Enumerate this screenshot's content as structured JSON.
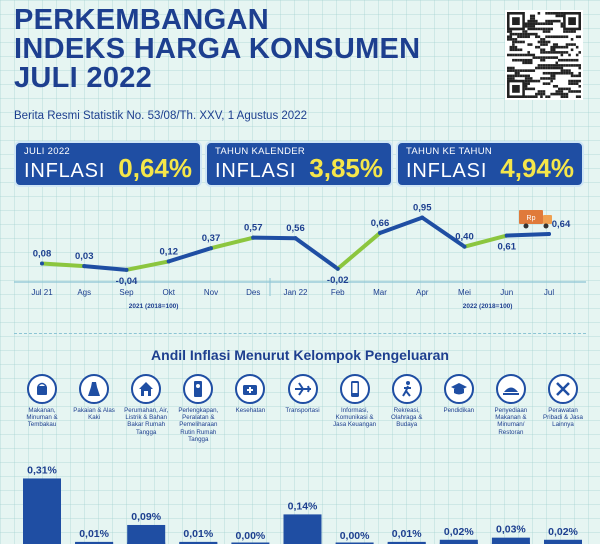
{
  "header": {
    "title_lines": [
      "PERKEMBANGAN",
      "INDEKS HARGA KONSUMEN",
      "JULI 2022"
    ],
    "subtitle": "Berita Resmi Statistik No. 53/08/Th. XXV, 1 Agustus 2022"
  },
  "cards": [
    {
      "small": "JULI 2022",
      "big": "INFLASI",
      "value": "0,64",
      "unit": "%"
    },
    {
      "small": "TAHUN KALENDER",
      "big": "INFLASI",
      "value": "3,85",
      "unit": "%"
    },
    {
      "small": "TAHUN KE TAHUN",
      "big": "INFLASI",
      "value": "4,94",
      "unit": "%"
    }
  ],
  "colors": {
    "navy": "#1f4ea3",
    "green": "#8cc63f",
    "yellow": "#f5e64a",
    "background": "#e6f5f2",
    "text": "#1d3f8f"
  },
  "chart_data": [
    {
      "type": "line",
      "title": "",
      "categories": [
        "Jul 21",
        "Ags",
        "Sep",
        "Okt",
        "Nov",
        "Des",
        "Jan 22",
        "Feb",
        "Mar",
        "Apr",
        "Mei",
        "Jun",
        "Jul"
      ],
      "values": [
        0.08,
        0.03,
        -0.04,
        0.12,
        0.37,
        0.57,
        0.56,
        -0.02,
        0.66,
        0.95,
        0.4,
        0.61,
        0.64
      ],
      "value_labels": [
        "0,08",
        "0,03",
        "-0,04",
        "0,12",
        "0,37",
        "0,57",
        "0,56",
        "-0,02",
        "0,66",
        "0,95",
        "0,40",
        "0,61",
        "0,64"
      ],
      "segment_colors": [
        "green",
        "navy",
        "green",
        "navy",
        "green",
        "navy",
        "navy",
        "green",
        "navy",
        "navy",
        "green",
        "navy"
      ],
      "ylim": [
        -0.1,
        1.0
      ],
      "group_labels": [
        "2021 (2018=100)",
        "2022 (2018=100)"
      ],
      "truck_badge": "Rp"
    },
    {
      "type": "bar",
      "title": "Andil Inflasi Menurut Kelompok Pengeluaran",
      "categories": [
        "Makanan, Minuman & Tembakau",
        "Pakaian & Alas Kaki",
        "Perumahan, Air, Listrik & Bahan Bakar Rumah Tangga",
        "Perlengkapan, Peralatan & Pemeliharaan Rutin Rumah Tangga",
        "Kesehatan",
        "Transportasi",
        "Informasi, Komunikasi & Jasa Keuangan",
        "Rekreasi, Olahraga & Budaya",
        "Pendidikan",
        "Penyediaan Makanan & Minuman/ Restoran",
        "Perawatan Pribadi & Jasa Lainnya"
      ],
      "values": [
        0.31,
        0.01,
        0.09,
        0.01,
        0.0,
        0.14,
        0.0,
        0.01,
        0.02,
        0.03,
        0.02
      ],
      "value_labels": [
        "0,31%",
        "0,01%",
        "0,09%",
        "0,01%",
        "0,00%",
        "0,14%",
        "0,00%",
        "0,01%",
        "0,02%",
        "0,03%",
        "0,02%"
      ],
      "icons": [
        "food-icon",
        "dress-icon",
        "house-icon",
        "appliance-icon",
        "medical-kit-icon",
        "airplane-icon",
        "phone-icon",
        "sports-icon",
        "graduation-cap-icon",
        "restaurant-icon",
        "scissors-comb-icon"
      ],
      "ylim": [
        0,
        0.35
      ]
    }
  ]
}
